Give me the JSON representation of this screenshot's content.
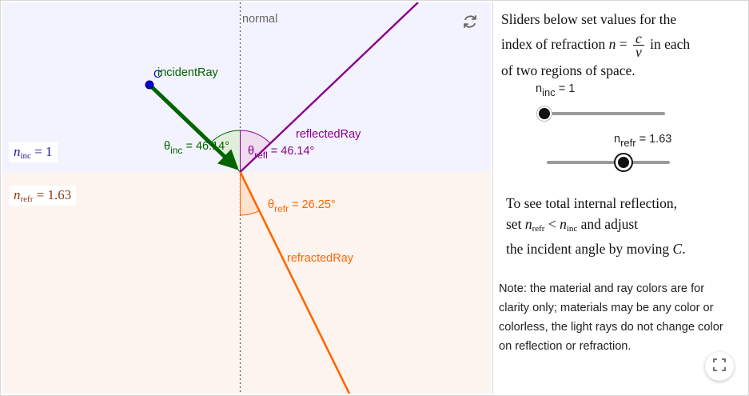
{
  "graphics": {
    "normal_label": "normal",
    "incident_ray_label": "incidentRay",
    "reflected_ray_label": "reflectedRay",
    "refracted_ray_label": "refractedRay",
    "point_label": "C",
    "theta_inc": {
      "sym": "θ",
      "sub": "inc",
      "value": " = 46.14°"
    },
    "theta_refl": {
      "sym": "θ",
      "sub": "refl",
      "value": " = 46.14°"
    },
    "theta_refr": {
      "sym": "θ",
      "sub": "refr",
      "value": " = 26.25°"
    },
    "n_inc_box": {
      "sym": "n",
      "sub": "inc",
      "value": " = 1"
    },
    "n_refr_box": {
      "sym": "n",
      "sub": "refr",
      "value": " = 1.63"
    },
    "colors": {
      "incident": "#006400",
      "reflected": "#8b008b",
      "refracted": "#ff6600",
      "upper_region": "#f3f3ff",
      "lower_region": "#fdf4ef",
      "point": "#0000dd",
      "n_inc_text": "#1a1aa6",
      "n_refr_text": "#8b3a0f"
    }
  },
  "panel": {
    "intro": {
      "line1": "Sliders below set values for the",
      "line2_prefix": "index of refraction ",
      "n": "n",
      "eq": " = ",
      "frac_num": "c",
      "frac_den": "v",
      "line2_suffix": " in each",
      "line3": "of two regions of space."
    },
    "slider_inc": {
      "label_n": "n",
      "label_sub": "inc",
      "label_value": " = 1",
      "value": 1
    },
    "slider_refr": {
      "label_n": "n",
      "label_sub": "refr",
      "label_value": " = 1.63",
      "value": 1.63
    },
    "howto": {
      "line1": "To see total internal reflection,",
      "line2_prefix": "set ",
      "n1": "n",
      "n1_sub": "refr",
      "lt": " < ",
      "n2": "n",
      "n2_sub": "inc",
      "line2_suffix": " and adjust",
      "line3_prefix": "the incident angle by moving ",
      "line3_var": "C",
      "line3_suffix": "."
    },
    "note": "Note: the material and ray colors are for clarity only; materials may be any color or colorless, the light rays do not change color on reflection or refraction."
  },
  "icons": {
    "reset": "reset-icon",
    "fullscreen": "fullscreen-icon"
  }
}
